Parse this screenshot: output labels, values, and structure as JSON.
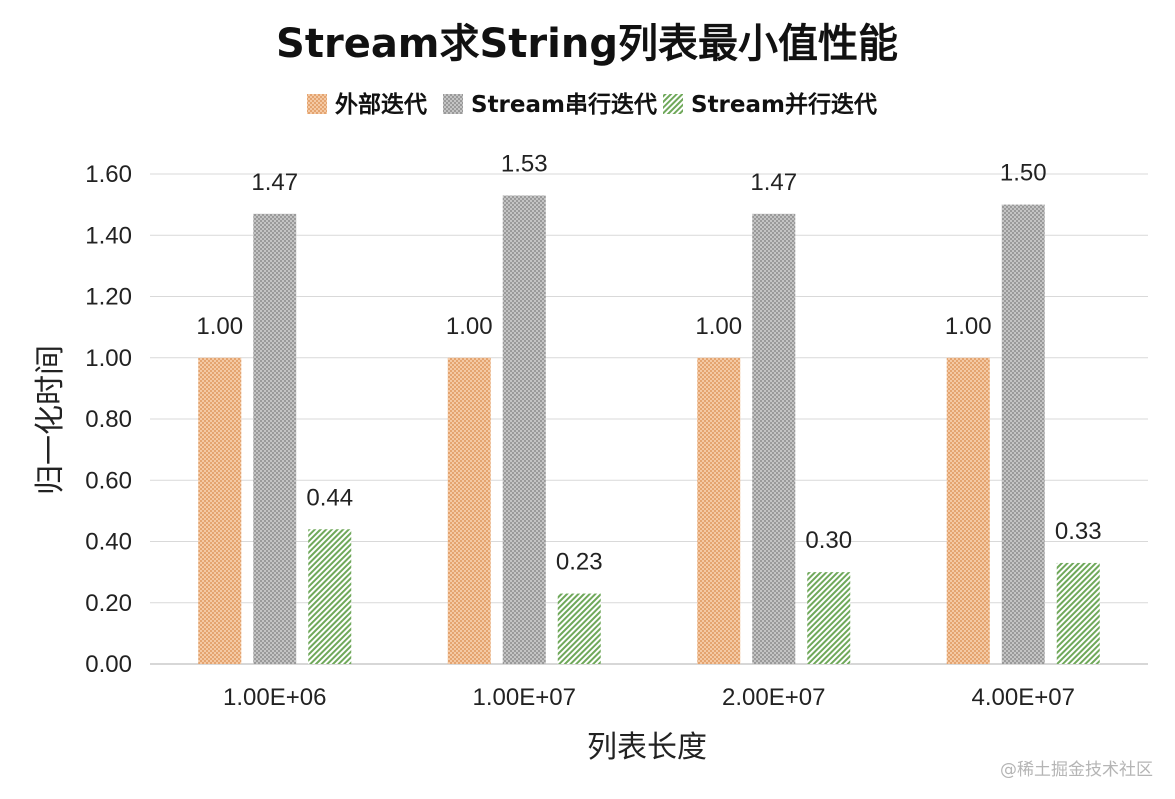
{
  "chart_data": {
    "type": "bar",
    "title": "Stream求String列表最小值性能",
    "xlabel": "列表长度",
    "ylabel": "归一化时间",
    "categories": [
      "1.00E+06",
      "1.00E+07",
      "2.00E+07",
      "4.00E+07"
    ],
    "series": [
      {
        "name": "外部迭代",
        "values": [
          1.0,
          1.0,
          1.0,
          1.0
        ],
        "labels": [
          "1.00",
          "1.00",
          "1.00",
          "1.00"
        ],
        "color": "#e6a36c",
        "pattern": "dots"
      },
      {
        "name": "Stream串行迭代",
        "values": [
          1.47,
          1.53,
          1.47,
          1.5
        ],
        "labels": [
          "1.47",
          "1.53",
          "1.47",
          "1.50"
        ],
        "color": "#9e9e9e",
        "pattern": "dots"
      },
      {
        "name": "Stream并行迭代",
        "values": [
          0.44,
          0.23,
          0.3,
          0.33
        ],
        "labels": [
          "0.44",
          "0.23",
          "0.30",
          "0.33"
        ],
        "color": "#7fb26a",
        "pattern": "diagonal"
      }
    ],
    "ylim": [
      0,
      1.6
    ],
    "yticks": [
      "0.00",
      "0.20",
      "0.40",
      "0.60",
      "0.80",
      "1.00",
      "1.20",
      "1.40",
      "1.60"
    ],
    "grid": true,
    "legend_position": "top"
  },
  "watermark": "@稀土掘金技术社区"
}
